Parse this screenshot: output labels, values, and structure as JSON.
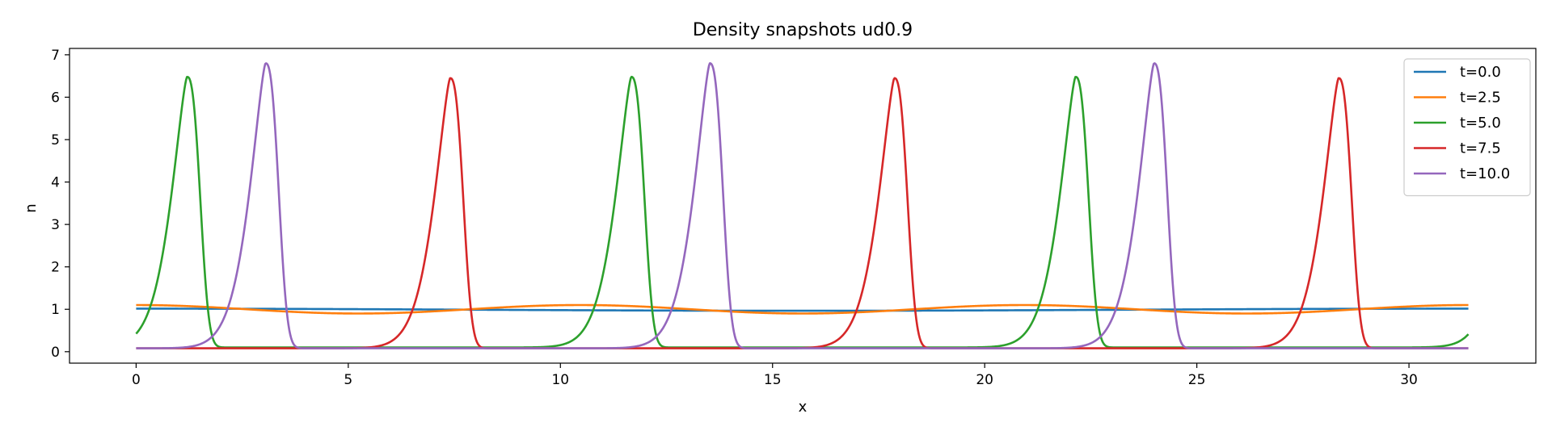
{
  "chart_data": {
    "type": "line",
    "title": "Density snapshots  ud0.9",
    "xlabel": "x",
    "ylabel": "n",
    "xlim": [
      -1.57,
      32.99
    ],
    "ylim": [
      -0.27,
      7.15
    ],
    "xticks": [
      0,
      5,
      10,
      15,
      20,
      25,
      30
    ],
    "yticks": [
      0,
      1,
      2,
      3,
      4,
      5,
      6,
      7
    ],
    "grid": false,
    "legend_position": "top-right",
    "domain": [
      0,
      31.4
    ],
    "series": [
      {
        "name": "t=0.0",
        "color": "#1f77b4",
        "period": 31.4,
        "model": "cosine",
        "base": 0.99,
        "amp": 0.025,
        "center": 0
      },
      {
        "name": "t=2.5",
        "color": "#ff7f0e",
        "period": 10.47,
        "model": "cosine",
        "base": 1.0,
        "amp": 0.1,
        "center": 0
      },
      {
        "name": "t=5.0",
        "color": "#2ca02c",
        "period": 10.47,
        "model": "pulse",
        "base": 0.1,
        "peak": 6.48,
        "center": 1.2,
        "left_width": 0.55,
        "right_width": 0.38,
        "left_shape": 1.4,
        "right_shape": 2.6
      },
      {
        "name": "t=7.5",
        "color": "#d62728",
        "period": 10.47,
        "model": "pulse",
        "base": 0.08,
        "peak": 6.45,
        "center": 7.4,
        "left_width": 0.55,
        "right_width": 0.38,
        "left_shape": 1.4,
        "right_shape": 2.6
      },
      {
        "name": "t=10.0",
        "color": "#9467bd",
        "period": 10.47,
        "model": "pulse",
        "base": 0.08,
        "peak": 6.8,
        "center": 3.05,
        "left_width": 0.55,
        "right_width": 0.38,
        "left_shape": 1.4,
        "right_shape": 2.6
      }
    ]
  }
}
